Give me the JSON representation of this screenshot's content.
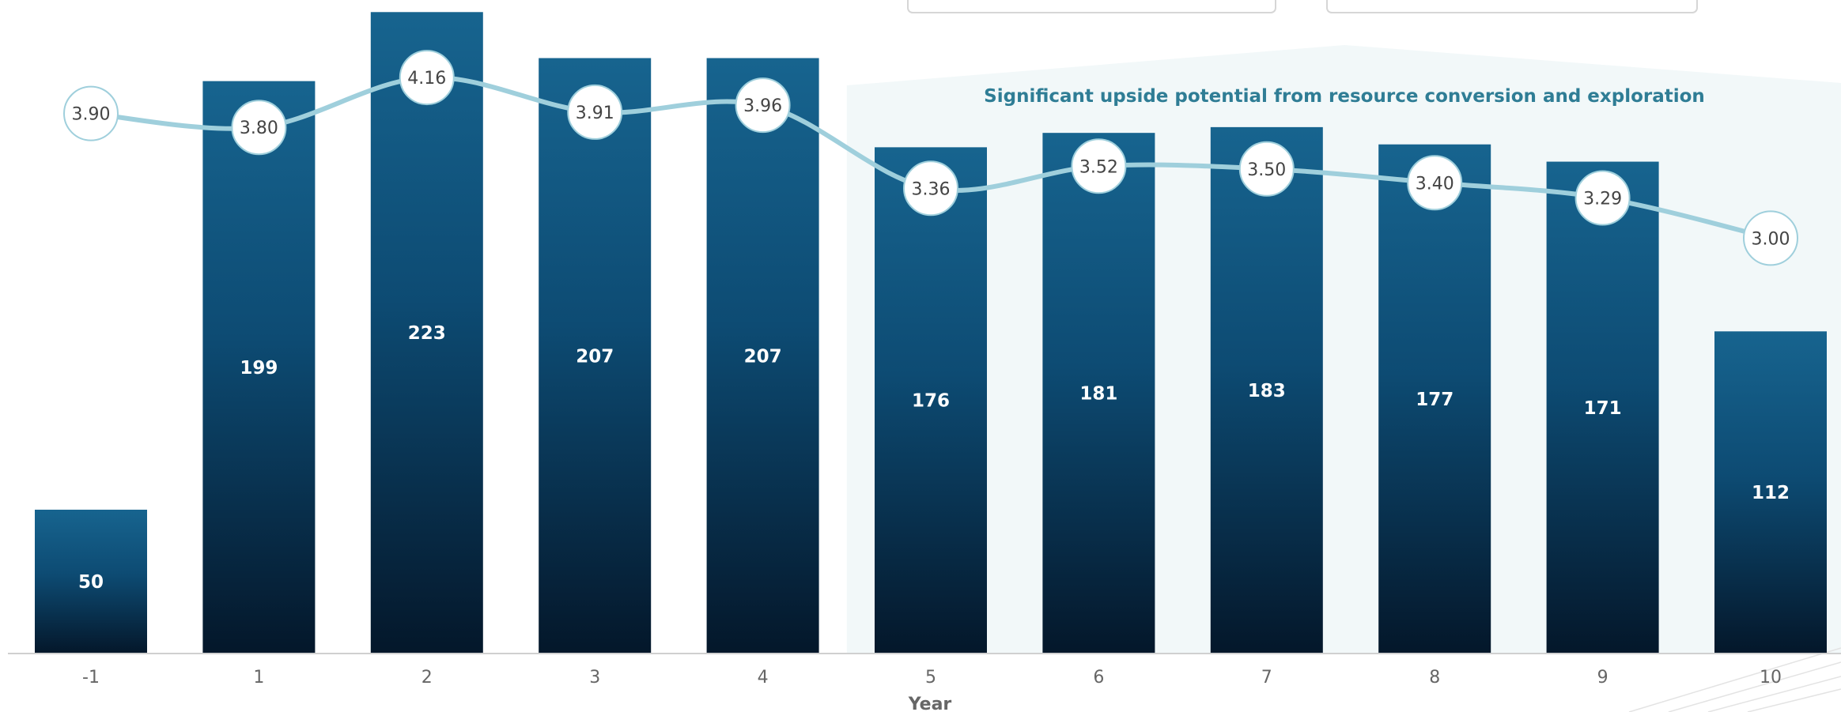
{
  "chart_data": {
    "type": "bar",
    "title": "",
    "xlabel": "Year",
    "ylabel": "",
    "categories": [
      "-1",
      "1",
      "2",
      "3",
      "4",
      "5",
      "6",
      "7",
      "8",
      "9",
      "10"
    ],
    "series": [
      {
        "type": "bar",
        "values": [
          50,
          199,
          223,
          207,
          207,
          176,
          181,
          183,
          177,
          171,
          112
        ]
      },
      {
        "type": "line",
        "values": [
          3.9,
          3.8,
          4.16,
          3.91,
          3.96,
          3.36,
          3.52,
          3.5,
          3.4,
          3.29,
          3.0
        ]
      }
    ],
    "bar_labels": [
      "50",
      "199",
      "223",
      "207",
      "207",
      "176",
      "181",
      "183",
      "177",
      "171",
      "112"
    ],
    "line_labels": [
      "3.90",
      "3.80",
      "4.16",
      "3.91",
      "3.96",
      "3.36",
      "3.52",
      "3.50",
      "3.40",
      "3.29",
      "3.00"
    ],
    "ylim_bar": [
      0,
      225
    ],
    "ylim_line": [
      0,
      4.72
    ],
    "grid": false,
    "legend": "none",
    "annotation": "Significant upside potential from resource conversion and exploration",
    "highlight_region_from": "5",
    "colors": {
      "bar_top": "#17648f",
      "bar_bottom": "#04172a",
      "line": "#9fcfdc",
      "marker_stroke": "#9fcfdc",
      "region_fill": "#f2f8f9",
      "callout_text": "#2f7d95"
    }
  }
}
